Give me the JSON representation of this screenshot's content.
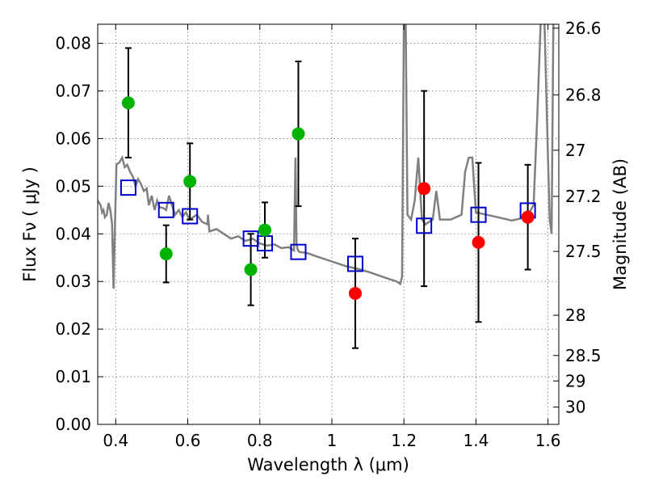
{
  "chart_data": {
    "type": "scatter",
    "title": "",
    "xlabel": "Wavelength  λ (μm)",
    "ylabel": "Flux  Fν  ( μJy )",
    "ylabel_right": "Magnitude (AB)",
    "xlim": [
      0.35,
      1.63
    ],
    "ylim": [
      0.0,
      0.084
    ],
    "x_ticks": [
      0.4,
      0.6,
      0.8,
      1.0,
      1.2,
      1.4,
      1.6
    ],
    "x_tick_labels": [
      "0.4",
      "0.6",
      "0.8",
      "1",
      "1.2",
      "1.4",
      "1.6"
    ],
    "y_ticks": [
      0.0,
      0.01,
      0.02,
      0.03,
      0.04,
      0.05,
      0.06,
      0.07,
      0.08
    ],
    "y_tick_labels": [
      "0.00",
      "0.01",
      "0.02",
      "0.03",
      "0.04",
      "0.05",
      "0.06",
      "0.07",
      "0.08"
    ],
    "right_ticks": [
      26.6,
      26.8,
      27.0,
      27.2,
      27.5,
      28.0,
      28.5,
      29.0,
      30.0
    ],
    "right_tick_labels": [
      "26.6",
      "26.8",
      "27",
      "27.2",
      "27.5",
      "28",
      "28.5",
      "29",
      "30"
    ],
    "grid": true,
    "colors": {
      "green": "#00b300",
      "red": "#ff0000",
      "model_box": "#0000cc",
      "sed": "#808080",
      "errorbar": "#000000"
    },
    "series": [
      {
        "marker": "circle",
        "color": "#00b300",
        "points": [
          {
            "x": 0.435,
            "y": 0.0675,
            "err": 0.0115
          },
          {
            "x": 0.54,
            "y": 0.0358,
            "err": 0.006
          },
          {
            "x": 0.606,
            "y": 0.051,
            "err": 0.008
          },
          {
            "x": 0.775,
            "y": 0.0325,
            "err": 0.0075
          },
          {
            "x": 0.814,
            "y": 0.0408,
            "err": 0.0058
          },
          {
            "x": 0.907,
            "y": 0.061,
            "err": 0.0152
          }
        ]
      },
      {
        "marker": "circle",
        "color": "#ff0000",
        "points": [
          {
            "x": 1.065,
            "y": 0.0275,
            "err": 0.0115
          },
          {
            "x": 1.256,
            "y": 0.0495,
            "err": 0.0205
          },
          {
            "x": 1.407,
            "y": 0.0382,
            "err": 0.0167
          },
          {
            "x": 1.544,
            "y": 0.0435,
            "err": 0.011
          }
        ]
      },
      {
        "marker": "open-square",
        "color": "#0000cc",
        "points": [
          {
            "x": 0.435,
            "y": 0.0497
          },
          {
            "x": 0.54,
            "y": 0.045
          },
          {
            "x": 0.606,
            "y": 0.0437
          },
          {
            "x": 0.775,
            "y": 0.039
          },
          {
            "x": 0.814,
            "y": 0.038
          },
          {
            "x": 0.907,
            "y": 0.0362
          },
          {
            "x": 1.065,
            "y": 0.0337
          },
          {
            "x": 1.256,
            "y": 0.0417
          },
          {
            "x": 1.407,
            "y": 0.044
          },
          {
            "x": 1.544,
            "y": 0.0449
          }
        ]
      }
    ],
    "sed_line": {
      "color": "#808080",
      "x": [
        0.35,
        0.358,
        0.362,
        0.366,
        0.37,
        0.375,
        0.38,
        0.385,
        0.39,
        0.394,
        0.398,
        0.402,
        0.41,
        0.418,
        0.425,
        0.432,
        0.44,
        0.448,
        0.455,
        0.462,
        0.47,
        0.478,
        0.486,
        0.492,
        0.5,
        0.508,
        0.515,
        0.522,
        0.53,
        0.54,
        0.548,
        0.556,
        0.565,
        0.575,
        0.585,
        0.595,
        0.605,
        0.615,
        0.625,
        0.64,
        0.655,
        0.656,
        0.66,
        0.68,
        0.7,
        0.72,
        0.74,
        0.76,
        0.78,
        0.8,
        0.82,
        0.84,
        0.86,
        0.88,
        0.895,
        0.899,
        0.902,
        0.906,
        0.91,
        0.93,
        0.96,
        1.0,
        1.04,
        1.08,
        1.11,
        1.14,
        1.16,
        1.18,
        1.19,
        1.195,
        1.2,
        1.205,
        1.21,
        1.22,
        1.23,
        1.24,
        1.25,
        1.26,
        1.28,
        1.29,
        1.3,
        1.33,
        1.36,
        1.37,
        1.38,
        1.39,
        1.4,
        1.43,
        1.46,
        1.5,
        1.54,
        1.56,
        1.57,
        1.58,
        1.59,
        1.6,
        1.605,
        1.61,
        1.615,
        1.62,
        1.63
      ],
      "y": [
        0.047,
        0.046,
        0.0445,
        0.045,
        0.0435,
        0.044,
        0.0465,
        0.045,
        0.042,
        0.0285,
        0.042,
        0.0545,
        0.055,
        0.056,
        0.054,
        0.0545,
        0.053,
        0.052,
        0.05,
        0.0515,
        0.0505,
        0.049,
        0.0495,
        0.046,
        0.048,
        0.045,
        0.047,
        0.0455,
        0.0455,
        0.045,
        0.048,
        0.046,
        0.044,
        0.045,
        0.0435,
        0.0445,
        0.043,
        0.0435,
        0.044,
        0.0425,
        0.042,
        0.044,
        0.0405,
        0.041,
        0.04,
        0.039,
        0.0395,
        0.0385,
        0.039,
        0.038,
        0.0375,
        0.0378,
        0.037,
        0.0372,
        0.0365,
        0.056,
        0.038,
        0.0365,
        0.0362,
        0.036,
        0.0352,
        0.0342,
        0.0332,
        0.0325,
        0.0318,
        0.031,
        0.0305,
        0.03,
        0.0295,
        0.031,
        0.085,
        0.085,
        0.044,
        0.043,
        0.047,
        0.056,
        0.043,
        0.042,
        0.043,
        0.049,
        0.043,
        0.043,
        0.044,
        0.053,
        0.056,
        0.056,
        0.0445,
        0.044,
        0.0435,
        0.0428,
        0.0435,
        0.046,
        0.064,
        0.085,
        0.085,
        0.056,
        0.043,
        0.04,
        0.085,
        0.085,
        0.085
      ]
    }
  }
}
